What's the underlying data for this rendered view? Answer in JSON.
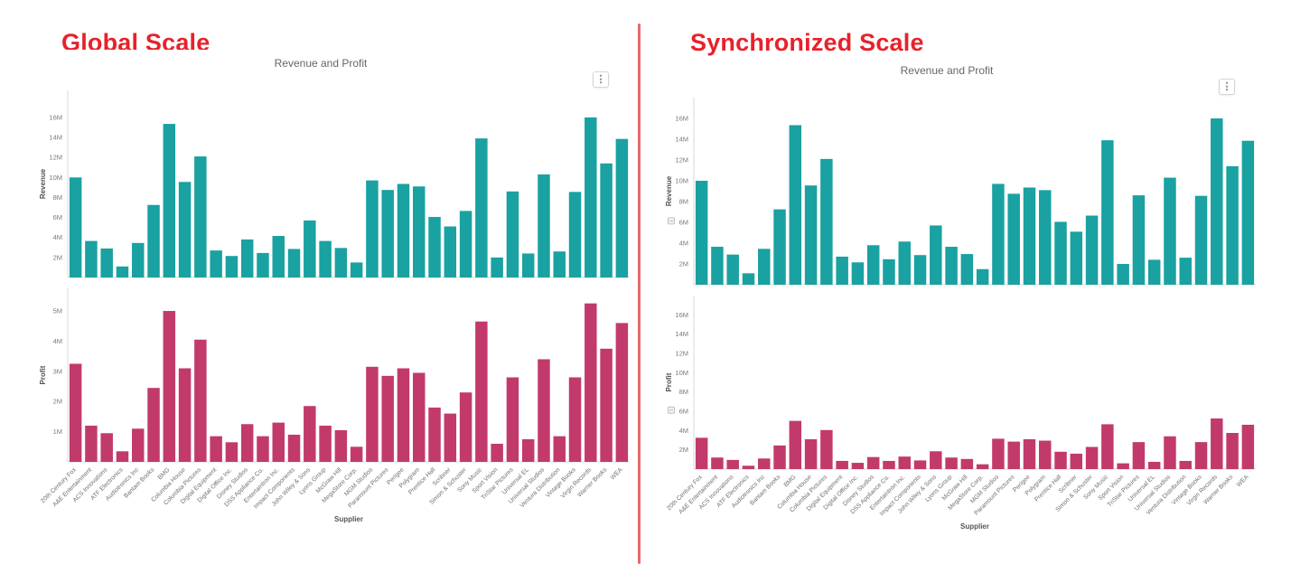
{
  "page": {
    "background": "#ffffff",
    "divider_color": "#e6696c",
    "heading_color": "#e8212a",
    "teal_color": "#1aa1a1",
    "pink_color": "#c23a6b"
  },
  "icons": {
    "kebab_glyph": "⋮",
    "chart_menu": "kebab-menu-icon",
    "axis_sync": "sync-axis-icon"
  },
  "panels": [
    {
      "heading": "Global Scale"
    },
    {
      "heading": "Synchronized Scale"
    }
  ],
  "chart_data": [
    {
      "type": "bar",
      "title": "Revenue and Profit",
      "xlabel": "Supplier",
      "legend": "none",
      "grid": "off",
      "sync_axes": false,
      "categories": [
        "20th Century Fox",
        "A&E Entertainment",
        "ACS Innovations",
        "ATF Electronics",
        "Audiotronics Inc",
        "Bantam Books",
        "BMG",
        "Columbia House",
        "Columbia Pictures",
        "Digital Equipment",
        "Digital Office Inc.",
        "Disney Studios",
        "DSS Appliance Co.",
        "Entertaintron Inc.",
        "Impact Components",
        "John Wiley & Sons",
        "Lyons Group",
        "McGraw Hill",
        "MegaStore Corp.",
        "MGM Studios",
        "Paramount Pictures",
        "Perigee",
        "Polygram",
        "Prentice Hall",
        "Scribner",
        "Simon & Schuster",
        "Sony Music",
        "Sport Vision",
        "TriStar Pictures",
        "Universal EL",
        "Universal Studios",
        "Ventura Distribution",
        "Vintage Books",
        "Virgin Records",
        "Warner Books",
        "WEA"
      ],
      "series": [
        {
          "name": "Revenue",
          "color": "#1aa1a1",
          "unit": "M",
          "axis_ticks": [
            "2M",
            "4M",
            "6M",
            "8M",
            "10M",
            "12M",
            "14M",
            "16M"
          ],
          "axis_max": 18.7,
          "values": [
            10.0,
            3.65,
            2.9,
            1.1,
            3.45,
            7.25,
            15.35,
            9.55,
            12.1,
            2.7,
            2.15,
            3.8,
            2.45,
            4.15,
            2.85,
            5.7,
            3.65,
            2.95,
            1.5,
            9.7,
            8.75,
            9.35,
            9.1,
            6.05,
            5.1,
            6.65,
            13.9,
            2.0,
            8.6,
            2.4,
            10.3,
            2.6,
            8.55,
            16.0,
            11.4,
            13.85
          ]
        },
        {
          "name": "Profit",
          "color": "#c23a6b",
          "unit": "M",
          "axis_ticks": [
            "1M",
            "2M",
            "3M",
            "4M",
            "5M"
          ],
          "axis_max": 5.75,
          "values": [
            3.25,
            1.2,
            0.95,
            0.35,
            1.1,
            2.45,
            5.0,
            3.1,
            4.05,
            0.85,
            0.65,
            1.25,
            0.85,
            1.3,
            0.9,
            1.85,
            1.2,
            1.05,
            0.5,
            3.15,
            2.85,
            3.1,
            2.95,
            1.8,
            1.6,
            2.3,
            4.65,
            0.6,
            2.8,
            0.75,
            3.4,
            0.85,
            2.8,
            5.25,
            3.75,
            4.6
          ]
        }
      ]
    },
    {
      "type": "bar",
      "title": "Revenue and Profit",
      "xlabel": "Supplier",
      "legend": "none",
      "grid": "off",
      "sync_axes": true,
      "categories": [
        "20th Century Fox",
        "A&E Entertainment",
        "ACS Innovations",
        "ATF Electronics",
        "Audiotronics Inc",
        "Bantam Books",
        "BMG",
        "Columbia House",
        "Columbia Pictures",
        "Digital Equipment",
        "Digital Office Inc.",
        "Disney Studios",
        "DSS Appliance Co.",
        "Entertaintron Inc.",
        "Impact Components",
        "John Wiley & Sons",
        "Lyons Group",
        "McGraw Hill",
        "MegaStore Corp.",
        "MGM Studios",
        "Paramount Pictures",
        "Perigee",
        "Polygram",
        "Prentice Hall",
        "Scribner",
        "Simon & Schuster",
        "Sony Music",
        "Sport Vision",
        "TriStar Pictures",
        "Universal EL",
        "Universal Studios",
        "Ventura Distribution",
        "Vintage Books",
        "Virgin Records",
        "Warner Books",
        "WEA"
      ],
      "series": [
        {
          "name": "Revenue",
          "color": "#1aa1a1",
          "unit": "M",
          "axis_ticks": [
            "2M",
            "4M",
            "6M",
            "8M",
            "10M",
            "12M",
            "14M",
            "16M"
          ],
          "axis_max": 18.0,
          "values": [
            10.0,
            3.65,
            2.9,
            1.1,
            3.45,
            7.25,
            15.35,
            9.55,
            12.1,
            2.7,
            2.15,
            3.8,
            2.45,
            4.15,
            2.85,
            5.7,
            3.65,
            2.95,
            1.5,
            9.7,
            8.75,
            9.35,
            9.1,
            6.05,
            5.1,
            6.65,
            13.9,
            2.0,
            8.6,
            2.4,
            10.3,
            2.6,
            8.55,
            16.0,
            11.4,
            13.85
          ]
        },
        {
          "name": "Profit",
          "color": "#c23a6b",
          "unit": "M",
          "axis_ticks": [
            "2M",
            "4M",
            "6M",
            "8M",
            "10M",
            "12M",
            "14M",
            "16M"
          ],
          "axis_max": 18.0,
          "values": [
            3.25,
            1.2,
            0.95,
            0.35,
            1.1,
            2.45,
            5.0,
            3.1,
            4.05,
            0.85,
            0.65,
            1.25,
            0.85,
            1.3,
            0.9,
            1.85,
            1.2,
            1.05,
            0.5,
            3.15,
            2.85,
            3.1,
            2.95,
            1.8,
            1.6,
            2.3,
            4.65,
            0.6,
            2.8,
            0.75,
            3.4,
            0.85,
            2.8,
            5.25,
            3.75,
            4.6
          ]
        }
      ]
    }
  ]
}
